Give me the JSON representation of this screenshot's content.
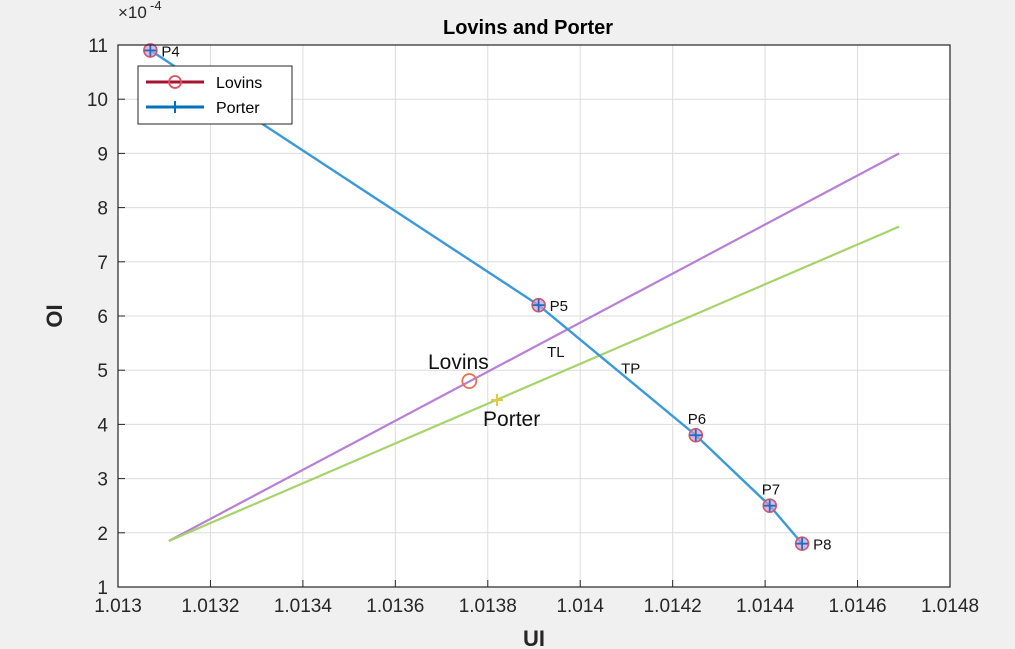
{
  "chart_data": {
    "type": "line",
    "title": "Lovins and Porter",
    "xlabel": "UI",
    "ylabel": "OI",
    "y_exponent_label": "×10",
    "y_exponent_power": "-4",
    "xlim": [
      1.013,
      1.0148
    ],
    "ylim": [
      1,
      11
    ],
    "x_ticks": [
      1.013,
      1.0132,
      1.0134,
      1.0136,
      1.0138,
      1.014,
      1.0142,
      1.0144,
      1.0146,
      1.0148
    ],
    "x_tick_labels": [
      "1.013",
      "1.0132",
      "1.0134",
      "1.0136",
      "1.0138",
      "1.014",
      "1.0142",
      "1.0144",
      "1.0146",
      "1.0148"
    ],
    "y_ticks": [
      1,
      2,
      3,
      4,
      5,
      6,
      7,
      8,
      9,
      10,
      11
    ],
    "y_tick_labels": [
      "1",
      "2",
      "3",
      "4",
      "5",
      "6",
      "7",
      "8",
      "9",
      "10",
      "11"
    ],
    "grid": true,
    "legend_position": "top-left",
    "legend": [
      {
        "name": "Lovins",
        "color": "#a2142f",
        "marker": "circle"
      },
      {
        "name": "Porter",
        "color": "#0072bd",
        "marker": "star"
      }
    ],
    "pareto_series": {
      "color": "#3a9ad9",
      "x": [
        1.01307,
        1.01391,
        1.01425,
        1.01441,
        1.01448
      ],
      "y": [
        10.9,
        6.2,
        3.8,
        2.5,
        1.8
      ],
      "labels": [
        "P4",
        "P5",
        "P6",
        "P7",
        "P8"
      ]
    },
    "lovins_line": {
      "color": "#b77fd6",
      "x": [
        1.01311,
        1.01469
      ],
      "y": [
        1.85,
        9.0
      ]
    },
    "porter_line": {
      "color": "#a7d36a",
      "x": [
        1.01311,
        1.01469
      ],
      "y": [
        1.85,
        7.65
      ]
    },
    "lovins_point": {
      "x": 1.01376,
      "y": 4.8,
      "label": "Lovins",
      "color": "#e8734f"
    },
    "porter_point": {
      "x": 1.01382,
      "y": 4.45,
      "label": "Porter",
      "color": "#e5c93a"
    },
    "annotations": [
      {
        "text": "TL",
        "x": 1.01395,
        "y": 5.35
      },
      {
        "text": "TP",
        "x": 1.01411,
        "y": 5.05
      }
    ]
  }
}
